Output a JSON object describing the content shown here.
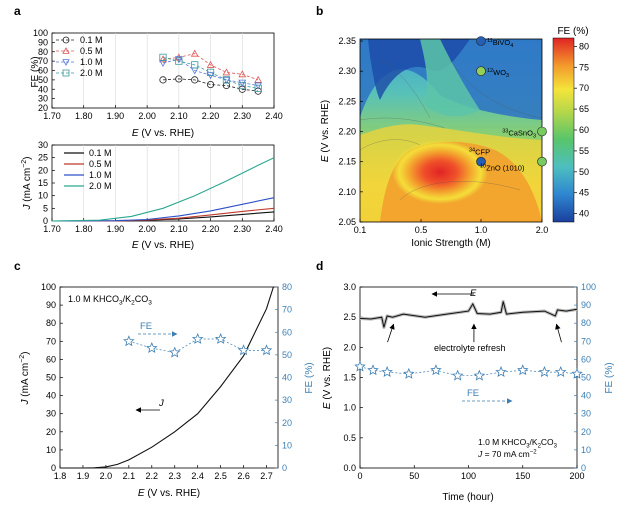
{
  "panels": {
    "a": {
      "letter": "a",
      "top": {
        "type": "scatter",
        "ylabel": "FE (%)",
        "ylim": [
          20,
          100
        ],
        "yticks": [
          20,
          30,
          40,
          50,
          60,
          70,
          80,
          90,
          100
        ],
        "xlim": [
          1.7,
          2.4
        ],
        "xticks": [
          "1.70",
          "1.80",
          "1.90",
          "2.00",
          "2.10",
          "2.20",
          "2.30",
          "2.40"
        ],
        "xlabel_italic": "E",
        "xlabel_rest": " (V vs. RHE)",
        "series": [
          {
            "name": "0.1 M",
            "color": "#222222",
            "marker": "circle",
            "x": [
              2.05,
              2.1,
              2.15,
              2.2,
              2.25,
              2.3,
              2.35
            ],
            "y": [
              50,
              51,
              50,
              45,
              44,
              40,
              38
            ]
          },
          {
            "name": "0.5 M",
            "color": "#e05555",
            "marker": "triangle-up",
            "x": [
              2.05,
              2.1,
              2.15,
              2.2,
              2.25,
              2.3,
              2.35
            ],
            "y": [
              72,
              74,
              78,
              66,
              58,
              56,
              50
            ]
          },
          {
            "name": "1.0 M",
            "color": "#5577dd",
            "marker": "triangle-down",
            "x": [
              2.05,
              2.1,
              2.15,
              2.2,
              2.25,
              2.3,
              2.35
            ],
            "y": [
              68,
              72,
              60,
              55,
              50,
              47,
              44
            ]
          },
          {
            "name": "2.0 M",
            "color": "#3a9aa0",
            "marker": "square",
            "x": [
              2.05,
              2.1,
              2.15,
              2.2,
              2.25,
              2.3,
              2.35
            ],
            "y": [
              74,
              70,
              66,
              58,
              50,
              44,
              41
            ]
          }
        ]
      },
      "bottom": {
        "type": "line",
        "ylabel_italic": "J",
        "ylabel_rest": " (mA cm",
        "ylabel_sup": "−2",
        "ylabel_end": ")",
        "ylim": [
          0,
          30
        ],
        "yticks": [
          0,
          5,
          10,
          15,
          20,
          25,
          30
        ],
        "xlim": [
          1.7,
          2.4
        ],
        "xticks": [
          "1.70",
          "1.80",
          "1.90",
          "2.00",
          "2.10",
          "2.20",
          "2.30",
          "2.40"
        ],
        "xlabel_italic": "E",
        "xlabel_rest": " (V vs. RHE)",
        "series": [
          {
            "name": "0.1 M",
            "color": "#111111",
            "x": [
              1.7,
              1.9,
              2.0,
              2.1,
              2.2,
              2.3,
              2.4
            ],
            "y": [
              0,
              0.05,
              0.3,
              0.8,
              1.6,
              2.6,
              3.6
            ]
          },
          {
            "name": "0.5 M",
            "color": "#c0392b",
            "x": [
              1.7,
              1.9,
              2.0,
              2.1,
              2.2,
              2.3,
              2.4
            ],
            "y": [
              0,
              0.05,
              0.4,
              1.1,
              2.4,
              3.8,
              5.0
            ]
          },
          {
            "name": "1.0 M",
            "color": "#2c50c8",
            "x": [
              1.7,
              1.9,
              2.0,
              2.1,
              2.2,
              2.3,
              2.4
            ],
            "y": [
              0,
              0.1,
              0.6,
              2.0,
              4.0,
              6.6,
              9.2
            ]
          },
          {
            "name": "2.0 M",
            "color": "#2aa890",
            "x": [
              1.7,
              1.85,
              1.95,
              2.05,
              2.15,
              2.25,
              2.35,
              2.4
            ],
            "y": [
              0,
              0.3,
              1.8,
              5.0,
              10.0,
              15.8,
              22.0,
              25.0
            ]
          }
        ]
      }
    },
    "b": {
      "letter": "b",
      "type": "heatmap",
      "ylabel_italic": "E",
      "ylabel_rest": " (V vs. RHE)",
      "xlabel": "Ionic Strength (M)",
      "xticks": [
        "0.1",
        "0.5",
        "1.0",
        "2.0"
      ],
      "yticks": [
        "2.05",
        "2.10",
        "2.15",
        "2.20",
        "2.25",
        "2.30",
        "2.35"
      ],
      "colorbar_title": "FE (%)",
      "colorbar_ticks": [
        40,
        45,
        50,
        55,
        60,
        65,
        70,
        75,
        80
      ],
      "colorbar_range": [
        38,
        82
      ],
      "annotations": [
        {
          "sup": "11",
          "text": "BiVO",
          "sub": "4",
          "x": 1.0,
          "y": 2.35,
          "value": 41
        },
        {
          "sup": "12",
          "text": "WO",
          "sub": "3",
          "x": 1.0,
          "y": 2.3,
          "value": 62
        },
        {
          "sup": "33",
          "text": "CaSnO",
          "sub": "3",
          "x": 2.0,
          "y": 2.2,
          "value": 60
        },
        {
          "sup": "34",
          "text": "CFP",
          "sub": "",
          "x": 1.0,
          "y": 2.15,
          "value": 41
        },
        {
          "sup": "10",
          "text": "ZnO (1010)",
          "sub": "",
          "x": 2.0,
          "y": 2.15,
          "value": 60
        }
      ]
    },
    "c": {
      "letter": "c",
      "type": "line",
      "title": "1.0 M KHCO",
      "title_sub1": "3",
      "title_mid": "/K",
      "title_sub2": "2",
      "title_end": "CO",
      "title_sub3": "3",
      "ylabel_italic": "J",
      "ylabel_rest": " (mA cm",
      "ylabel_sup": "−2",
      "ylabel_end": ")",
      "ylim": [
        0,
        100
      ],
      "yticks": [
        0,
        10,
        20,
        30,
        40,
        50,
        60,
        70,
        80,
        90,
        100
      ],
      "y2label": "FE (%)",
      "y2lim": [
        0,
        80
      ],
      "y2ticks": [
        0,
        10,
        20,
        30,
        40,
        50,
        60,
        70,
        80
      ],
      "xlim": [
        1.8,
        2.75
      ],
      "xticks": [
        "1.8",
        "1.9",
        "2.0",
        "2.1",
        "2.2",
        "2.3",
        "2.4",
        "2.5",
        "2.6",
        "2.7"
      ],
      "xlabel_italic": "E",
      "xlabel_rest": " (V vs. RHE)",
      "j_label": "J",
      "fe_label": "FE",
      "j_curve": {
        "x": [
          1.8,
          1.9,
          1.95,
          2.0,
          2.05,
          2.1,
          2.2,
          2.3,
          2.4,
          2.5,
          2.6,
          2.7,
          2.73
        ],
        "y": [
          0,
          0,
          0.1,
          0.6,
          2.0,
          4.5,
          11.5,
          20.0,
          30.0,
          45.0,
          62.0,
          88.0,
          100.0
        ]
      },
      "fe_points": {
        "x": [
          2.1,
          2.2,
          2.3,
          2.4,
          2.5,
          2.6,
          2.7
        ],
        "y": [
          56,
          53,
          51,
          57,
          57,
          52,
          52
        ]
      }
    },
    "d": {
      "letter": "d",
      "type": "line",
      "ylabel_italic": "E",
      "ylabel_rest": " (V vs. RHE)",
      "ylim": [
        0,
        3.0
      ],
      "yticks": [
        "0.0",
        "0.5",
        "1.0",
        "1.5",
        "2.0",
        "2.5",
        "3.0"
      ],
      "y2label": "FE (%)",
      "y2lim": [
        0,
        100
      ],
      "y2ticks": [
        0,
        10,
        20,
        30,
        40,
        50,
        60,
        70,
        80,
        90,
        100
      ],
      "xlabel": "Time (hour)",
      "xlim": [
        0,
        200
      ],
      "xticks": [
        "0",
        "50",
        "100",
        "150",
        "200"
      ],
      "e_label": "E",
      "fe_label": "FE",
      "refresh_label": "electrolyte refresh",
      "cond_line1_pre": "1.0 M KHCO",
      "cond_line1_s1": "3",
      "cond_line1_mid": "/K",
      "cond_line1_s2": "2",
      "cond_line1_end": "CO",
      "cond_line1_s3": "3",
      "cond_line2_italic": "J",
      "cond_line2_rest": " = 70 mA cm",
      "cond_line2_sup": "−2",
      "e_curve": {
        "x": [
          0,
          10,
          20,
          22,
          25,
          30,
          40,
          60,
          80,
          100,
          104,
          108,
          120,
          130,
          132,
          135,
          150,
          170,
          180,
          182,
          190,
          200
        ],
        "y": [
          2.48,
          2.47,
          2.5,
          2.33,
          2.52,
          2.5,
          2.55,
          2.5,
          2.55,
          2.6,
          2.72,
          2.56,
          2.55,
          2.58,
          2.76,
          2.55,
          2.58,
          2.6,
          2.52,
          2.62,
          2.6,
          2.63
        ]
      },
      "fe_points": {
        "x": [
          0,
          12,
          25,
          45,
          70,
          90,
          110,
          130,
          150,
          170,
          185,
          200
        ],
        "y": [
          56,
          54,
          53,
          52,
          54,
          51,
          51,
          53,
          54,
          53,
          53,
          52
        ]
      },
      "refresh_arrow_times": [
        30,
        105,
        182
      ]
    }
  }
}
